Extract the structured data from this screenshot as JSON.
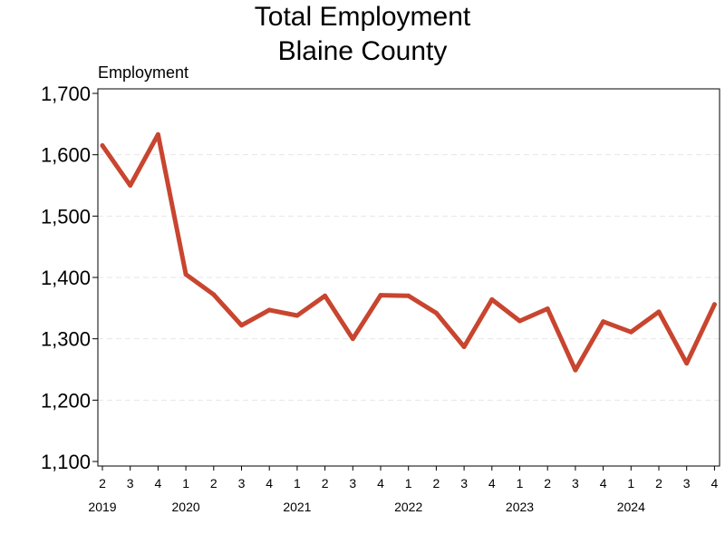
{
  "chart_data": {
    "type": "line",
    "title": "Total Employment",
    "subtitle": "Blaine County",
    "ylabel": "Employment",
    "xlabel": "",
    "ylim": [
      1100,
      1700
    ],
    "yticks": [
      1100,
      1200,
      1300,
      1400,
      1500,
      1600,
      1700
    ],
    "ytick_labels": [
      "1,100",
      "1,200",
      "1,300",
      "1,400",
      "1,500",
      "1,600",
      "1,700"
    ],
    "grid": true,
    "x_quarters": [
      "2",
      "3",
      "4",
      "1",
      "2",
      "3",
      "4",
      "1",
      "2",
      "3",
      "4",
      "1",
      "2",
      "3",
      "4",
      "1",
      "2",
      "3",
      "4",
      "1",
      "2",
      "3",
      "4"
    ],
    "year_labels": [
      {
        "label": "2019",
        "quarter_index": 0
      },
      {
        "label": "2020",
        "quarter_index": 3
      },
      {
        "label": "2021",
        "quarter_index": 7
      },
      {
        "label": "2022",
        "quarter_index": 11
      },
      {
        "label": "2023",
        "quarter_index": 15
      },
      {
        "label": "2024",
        "quarter_index": 19
      }
    ],
    "series": [
      {
        "values": [
          1615,
          1550,
          1633,
          1405,
          1372,
          1322,
          1347,
          1338,
          1370,
          1300,
          1371,
          1370,
          1342,
          1287,
          1364,
          1329,
          1349,
          1249,
          1328,
          1311,
          1344,
          1260,
          1356
        ],
        "color": "#c8452f"
      }
    ]
  }
}
